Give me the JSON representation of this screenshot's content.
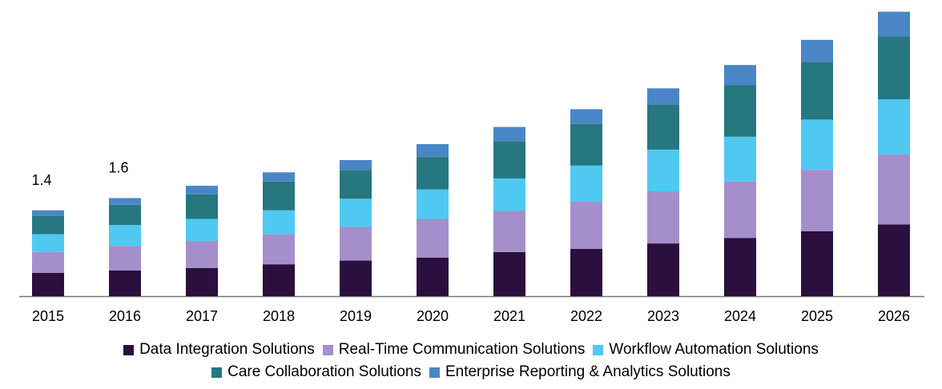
{
  "chart_data": {
    "type": "bar",
    "stacked": true,
    "title": "",
    "xlabel": "",
    "ylabel": "",
    "categories": [
      "2015",
      "2016",
      "2017",
      "2018",
      "2019",
      "2020",
      "2021",
      "2022",
      "2023",
      "2024",
      "2025",
      "2026"
    ],
    "series": [
      {
        "name": "Data Integration Solutions",
        "color": "#2b0f3e",
        "values": [
          0.38,
          0.42,
          0.46,
          0.52,
          0.58,
          0.63,
          0.72,
          0.77,
          0.86,
          0.95,
          1.06,
          1.17
        ]
      },
      {
        "name": "Real-Time Communication Solutions",
        "color": "#a48fcc",
        "values": [
          0.34,
          0.4,
          0.44,
          0.49,
          0.55,
          0.63,
          0.67,
          0.77,
          0.85,
          0.92,
          1.0,
          1.14
        ]
      },
      {
        "name": "Workflow Automation Solutions",
        "color": "#4fc9f2",
        "values": [
          0.29,
          0.34,
          0.36,
          0.39,
          0.46,
          0.48,
          0.53,
          0.59,
          0.68,
          0.73,
          0.82,
          0.9
        ]
      },
      {
        "name": "Care Collaboration Solutions",
        "color": "#277780",
        "values": [
          0.3,
          0.33,
          0.4,
          0.47,
          0.47,
          0.53,
          0.61,
          0.68,
          0.74,
          0.84,
          0.94,
          1.03
        ]
      },
      {
        "name": "Enterprise Reporting & Analytics Solutions",
        "color": "#4a86c6",
        "values": [
          0.09,
          0.11,
          0.14,
          0.15,
          0.16,
          0.21,
          0.23,
          0.24,
          0.26,
          0.33,
          0.36,
          0.4
        ]
      }
    ],
    "data_labels": [
      {
        "category": "2015",
        "text": "1.4"
      },
      {
        "category": "2016",
        "text": "1.6"
      }
    ],
    "ylim": [
      0,
      4.7
    ],
    "grid": false,
    "legend_position": "bottom"
  }
}
